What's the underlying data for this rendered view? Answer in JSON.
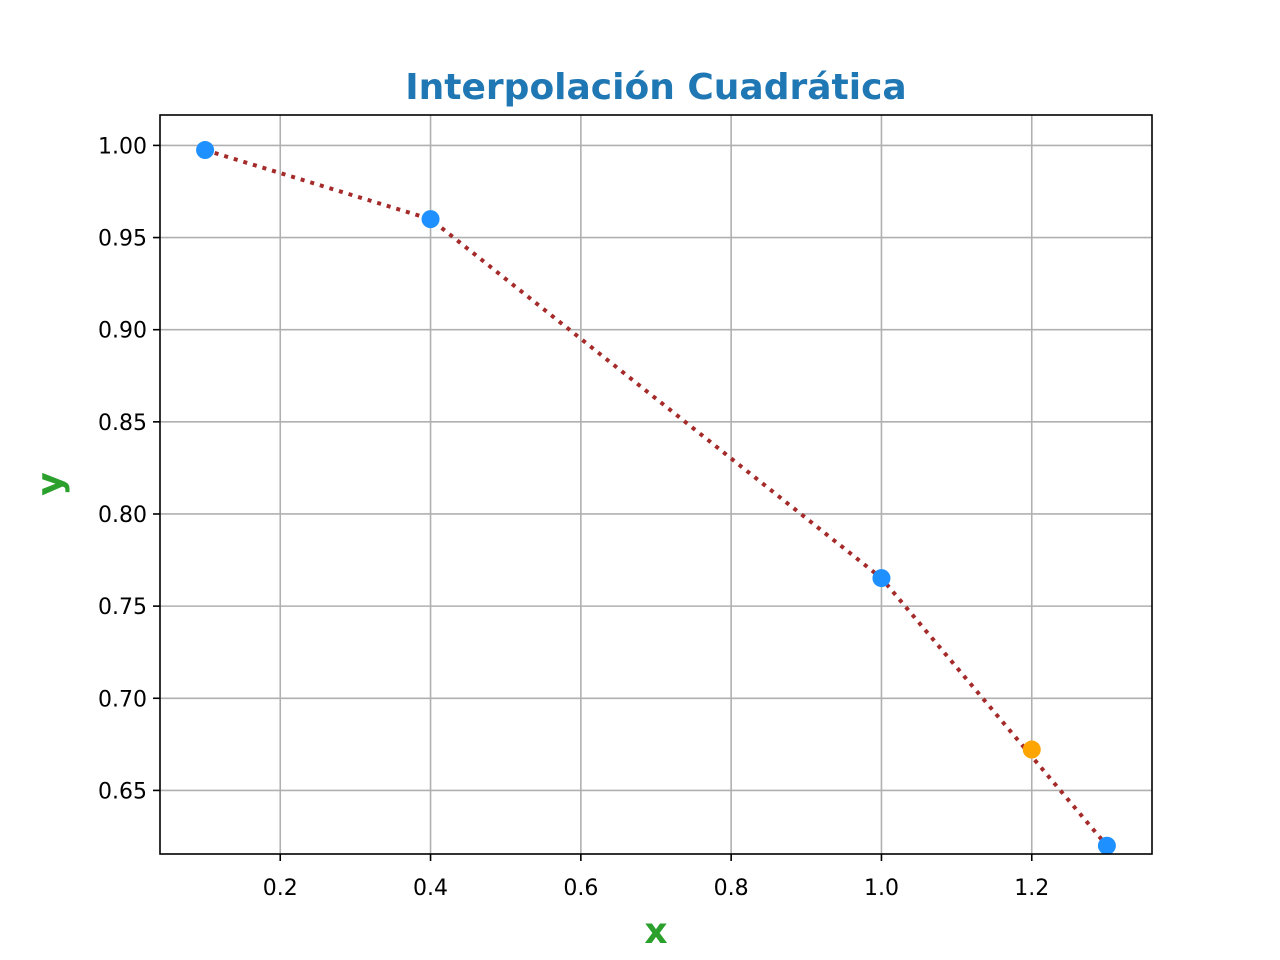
{
  "chart_data": {
    "type": "line",
    "title": "Interpolación Cuadrática",
    "xlabel": "x",
    "ylabel": "y",
    "xlim": [
      0.04,
      1.36
    ],
    "ylim": [
      0.6155,
      1.0165
    ],
    "xticks": [
      0.2,
      0.4,
      0.6,
      0.8,
      1.0,
      1.2
    ],
    "xtick_labels": [
      "0.2",
      "0.4",
      "0.6",
      "0.8",
      "1.0",
      "1.2"
    ],
    "yticks": [
      0.65,
      0.7,
      0.75,
      0.8,
      0.85,
      0.9,
      0.95,
      1.0
    ],
    "ytick_labels": [
      "0.65",
      "0.70",
      "0.75",
      "0.80",
      "0.85",
      "0.90",
      "0.95",
      "1.00"
    ],
    "grid": true,
    "series": [
      {
        "style": "dotted-line",
        "x": [
          0.1,
          0.4,
          1.0,
          1.3
        ],
        "y": [
          0.9975,
          0.96,
          0.7652,
          0.62
        ]
      },
      {
        "style": "markers",
        "x": [
          0.1,
          0.4,
          1.0,
          1.3
        ],
        "y": [
          0.9975,
          0.96,
          0.7652,
          0.62
        ]
      },
      {
        "style": "markers",
        "x": [
          1.2
        ],
        "y": [
          0.6722
        ]
      }
    ],
    "colors": {
      "title": "#1f77b4",
      "axis_label": "#2ca02c",
      "line": "#a52a2a",
      "data_points": "#1e90ff",
      "interpolated_point": "#ffa500",
      "grid": "#b0b0b0"
    }
  }
}
